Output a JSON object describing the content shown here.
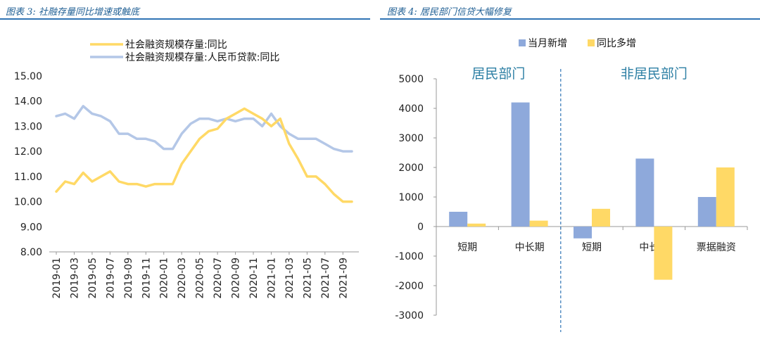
{
  "left_title": "图表 3: 社融存量同比增速或触底",
  "right_title": "图表 4: 居民部门信贷大幅修复",
  "colors": {
    "yellow": "#ffd966",
    "blue": "#b4c7e7",
    "bar_blue": "#8ea9db",
    "bar_yellow": "#ffd966",
    "title": "#1f5f94",
    "rule": "#2f74b5"
  },
  "chart_data": [
    {
      "type": "line",
      "title": "",
      "x": [
        "2019-01",
        "2019-02",
        "2019-03",
        "2019-04",
        "2019-05",
        "2019-06",
        "2019-07",
        "2019-08",
        "2019-09",
        "2019-10",
        "2019-11",
        "2019-12",
        "2020-01",
        "2020-02",
        "2020-03",
        "2020-04",
        "2020-05",
        "2020-06",
        "2020-07",
        "2020-08",
        "2020-09",
        "2020-10",
        "2020-11",
        "2020-12",
        "2021-01",
        "2021-02",
        "2021-03",
        "2021-04",
        "2021-05",
        "2021-06",
        "2021-07",
        "2021-08",
        "2021-09",
        "2021-10"
      ],
      "x_tick_labels": [
        "2019-01",
        "2019-03",
        "2019-05",
        "2019-07",
        "2019-09",
        "2019-11",
        "2020-01",
        "2020-03",
        "2020-05",
        "2020-07",
        "2020-09",
        "2020-11",
        "2021-01",
        "2021-03",
        "2021-05",
        "2021-07",
        "2021-09"
      ],
      "y_tick_labels": [
        "15.00",
        "14.00",
        "13.00",
        "12.00",
        "11.00",
        "10.00",
        "9.00",
        "8.00"
      ],
      "ylim": [
        8,
        15
      ],
      "series": [
        {
          "name": "社会融资规模存量:同比",
          "color": "#ffd966",
          "values": [
            10.4,
            10.8,
            10.7,
            11.15,
            10.8,
            11.0,
            11.2,
            10.8,
            10.7,
            10.7,
            10.6,
            10.7,
            10.7,
            10.7,
            11.5,
            12.0,
            12.5,
            12.8,
            12.9,
            13.3,
            13.5,
            13.7,
            13.5,
            13.3,
            13.0,
            13.3,
            12.3,
            11.7,
            11.0,
            11.0,
            10.7,
            10.3,
            10.0,
            10.0
          ]
        },
        {
          "name": "社会融资规模存量:人民币贷款:同比",
          "color": "#b4c7e7",
          "values": [
            13.4,
            13.5,
            13.3,
            13.8,
            13.5,
            13.4,
            13.2,
            12.7,
            12.7,
            12.5,
            12.5,
            12.4,
            12.1,
            12.1,
            12.7,
            13.1,
            13.3,
            13.3,
            13.2,
            13.3,
            13.2,
            13.3,
            13.3,
            13.0,
            13.5,
            13.0,
            12.7,
            12.5,
            12.5,
            12.5,
            12.3,
            12.1,
            12.0,
            12.0
          ]
        }
      ]
    },
    {
      "type": "bar",
      "title": "",
      "categories": [
        "短期",
        "中长期",
        "短期",
        "中长期",
        "票据融资"
      ],
      "groups": [
        {
          "name": "居民部门",
          "categories": [
            0,
            1
          ]
        },
        {
          "name": "非居民部门",
          "categories": [
            2,
            3,
            4
          ]
        }
      ],
      "y_tick_labels": [
        "5000",
        "4000",
        "3000",
        "2000",
        "1000",
        "0",
        "-1000",
        "-2000",
        "-3000"
      ],
      "ylim": [
        -3000,
        5000
      ],
      "series": [
        {
          "name": "当月新增",
          "color": "#8ea9db",
          "values": [
            500,
            4200,
            -400,
            2300,
            1000
          ]
        },
        {
          "name": "同比多增",
          "color": "#ffd966",
          "values": [
            100,
            200,
            600,
            -1800,
            2000
          ]
        }
      ]
    }
  ]
}
